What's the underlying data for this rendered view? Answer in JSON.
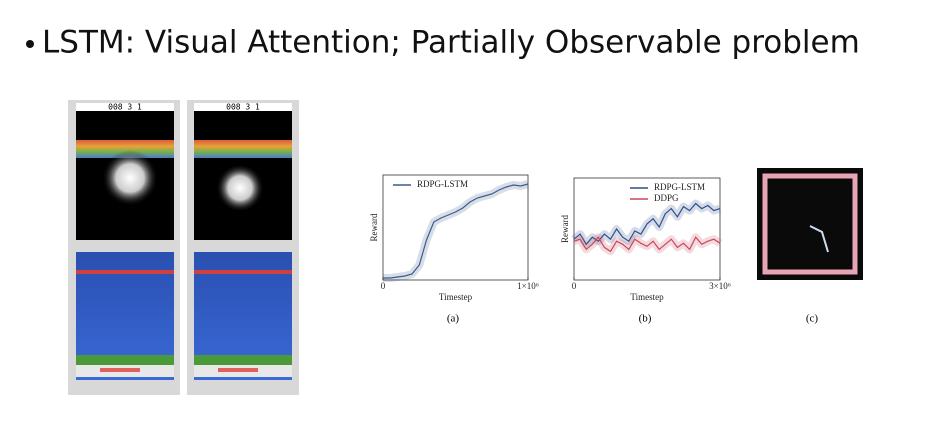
{
  "title": "LSTM: Visual Attention; Partially Observable problem",
  "game_screens": {
    "scores": [
      "008 3 1",
      "008 3 1"
    ]
  },
  "captions": [
    "(a)",
    "(b)",
    "(c)"
  ],
  "chart_data": [
    {
      "type": "line",
      "xlabel": "Timestep",
      "ylabel": "Reward",
      "x": [
        0,
        50000,
        100000,
        150000,
        200000,
        250000,
        300000,
        350000,
        400000,
        450000,
        500000,
        550000,
        600000,
        650000,
        700000,
        750000,
        800000,
        850000,
        900000,
        950000,
        1000000
      ],
      "series": [
        {
          "name": "RDPG-LSTM",
          "color": "#3b5b8c",
          "values": [
            0.02,
            0.02,
            0.03,
            0.04,
            0.06,
            0.15,
            0.4,
            0.58,
            0.62,
            0.65,
            0.68,
            0.72,
            0.78,
            0.82,
            0.84,
            0.86,
            0.9,
            0.93,
            0.95,
            0.94,
            0.96
          ]
        }
      ],
      "xlim": [
        0,
        1000000
      ],
      "ylim": [
        0,
        1.05
      ],
      "xticks": [
        0,
        {
          "value": 1000000,
          "label": "1×10⁶"
        }
      ],
      "legend": "upper left"
    },
    {
      "type": "line",
      "xlabel": "Timestep",
      "ylabel": "Reward",
      "x": [
        0,
        125000,
        250000,
        375000,
        500000,
        625000,
        750000,
        875000,
        1000000,
        1125000,
        1250000,
        1375000,
        1500000,
        1625000,
        1750000,
        1875000,
        2000000,
        2125000,
        2250000,
        2375000,
        2500000,
        2625000,
        2750000,
        2875000,
        3000000
      ],
      "series": [
        {
          "name": "RDPG-LSTM",
          "color": "#2f4f8a",
          "values": [
            0.4,
            0.45,
            0.35,
            0.42,
            0.38,
            0.45,
            0.4,
            0.5,
            0.42,
            0.38,
            0.48,
            0.45,
            0.55,
            0.6,
            0.52,
            0.65,
            0.7,
            0.62,
            0.72,
            0.68,
            0.75,
            0.7,
            0.73,
            0.68,
            0.7
          ]
        },
        {
          "name": "DDPG",
          "color": "#c9485b",
          "values": [
            0.38,
            0.4,
            0.3,
            0.35,
            0.42,
            0.32,
            0.28,
            0.38,
            0.35,
            0.3,
            0.4,
            0.36,
            0.33,
            0.38,
            0.3,
            0.35,
            0.4,
            0.32,
            0.36,
            0.3,
            0.42,
            0.35,
            0.38,
            0.4,
            0.36
          ]
        }
      ],
      "xlim": [
        0,
        3000000
      ],
      "ylim": [
        0,
        1
      ],
      "xticks": [
        0,
        {
          "value": 3000000,
          "label": "3×10⁶"
        }
      ],
      "legend": "upper right"
    }
  ]
}
